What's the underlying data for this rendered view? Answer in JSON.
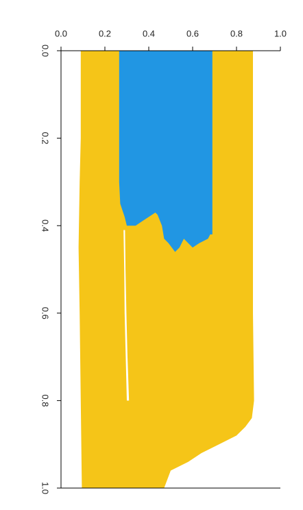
{
  "chart_data": {
    "type": "area",
    "title": "",
    "xlabel": "",
    "ylabel": "",
    "xlim": [
      0,
      1
    ],
    "ylim": [
      0,
      1
    ],
    "y_reversed": true,
    "x_ticks": [
      "0.0",
      "0.2",
      "0.4",
      "0.6",
      "0.8",
      "1.0"
    ],
    "y_ticks": [
      "0.0",
      "0.2",
      "0.4",
      "0.6",
      "0.8",
      "1.0"
    ],
    "x_tick_values": [
      0.0,
      0.2,
      0.4,
      0.6,
      0.8,
      1.0
    ],
    "y_tick_values": [
      0.0,
      0.2,
      0.4,
      0.6,
      0.8,
      1.0
    ],
    "x_axis_position": "top",
    "y_tick_label_orientation": "rotated",
    "grid": false,
    "legend": "none",
    "colors": {
      "yellow": "#F5C518",
      "blue": "#2196E3",
      "gap": "#ffffff"
    },
    "series": [
      {
        "color_key": "yellow",
        "left": [
          [
            0,
            0.09
          ],
          [
            0.1,
            0.09
          ],
          [
            0.2,
            0.09
          ],
          [
            0.3,
            0.085
          ],
          [
            0.45,
            0.08
          ],
          [
            0.6,
            0.085
          ],
          [
            0.8,
            0.09
          ],
          [
            1.0,
            0.095
          ]
        ],
        "right": [
          [
            0,
            0.875
          ],
          [
            0.2,
            0.875
          ],
          [
            0.4,
            0.875
          ],
          [
            0.6,
            0.875
          ],
          [
            0.8,
            0.88
          ],
          [
            0.84,
            0.87
          ],
          [
            0.86,
            0.84
          ],
          [
            0.88,
            0.8
          ],
          [
            0.9,
            0.72
          ],
          [
            0.92,
            0.64
          ],
          [
            0.94,
            0.58
          ],
          [
            0.96,
            0.5
          ],
          [
            1.0,
            0.47
          ]
        ]
      },
      {
        "color_key": "blue",
        "left": [
          [
            0,
            0.265
          ],
          [
            0.2,
            0.265
          ],
          [
            0.3,
            0.265
          ],
          [
            0.35,
            0.27
          ],
          [
            0.38,
            0.29
          ],
          [
            0.4,
            0.3
          ],
          [
            0.4,
            0.34
          ],
          [
            0.39,
            0.37
          ],
          [
            0.37,
            0.43
          ],
          [
            0.375,
            0.44
          ],
          [
            0.4,
            0.46
          ],
          [
            0.43,
            0.47
          ],
          [
            0.44,
            0.49
          ],
          [
            0.46,
            0.52
          ],
          [
            0.45,
            0.54
          ],
          [
            0.43,
            0.56
          ],
          [
            0.44,
            0.58
          ],
          [
            0.45,
            0.6
          ],
          [
            0.44,
            0.63
          ],
          [
            0.43,
            0.67
          ],
          [
            0.42,
            0.68
          ]
        ],
        "right": [
          [
            0,
            0.69
          ],
          [
            0.2,
            0.69
          ],
          [
            0.3,
            0.69
          ],
          [
            0.42,
            0.69
          ]
        ]
      }
    ],
    "gaps": [
      {
        "color_key": "gap",
        "points": [
          [
            0.41,
            0.285
          ],
          [
            0.5,
            0.288
          ],
          [
            0.6,
            0.29
          ],
          [
            0.7,
            0.295
          ],
          [
            0.8,
            0.3
          ],
          [
            0.8,
            0.31
          ],
          [
            0.7,
            0.303
          ],
          [
            0.6,
            0.298
          ],
          [
            0.5,
            0.294
          ],
          [
            0.41,
            0.292
          ]
        ]
      }
    ]
  }
}
